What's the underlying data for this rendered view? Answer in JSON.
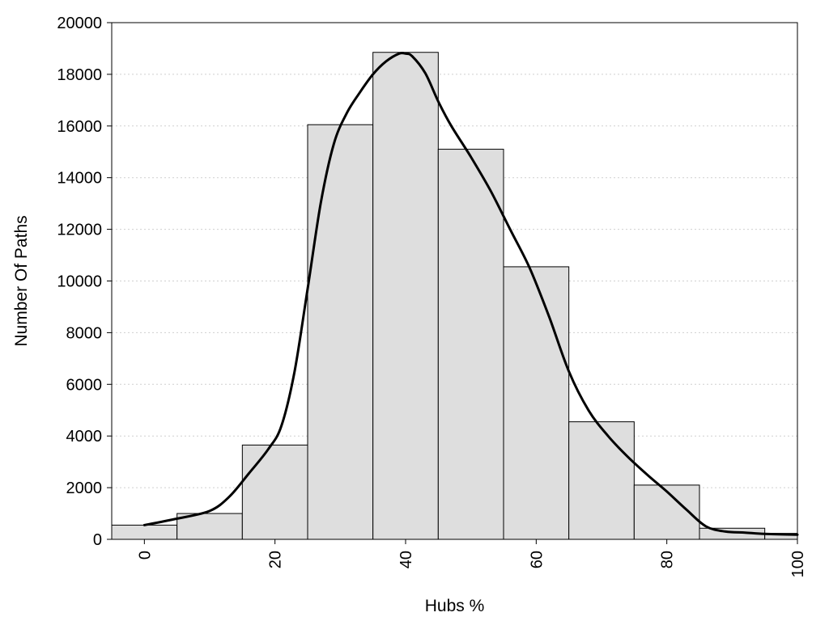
{
  "chart_data": {
    "type": "bar",
    "title": "",
    "xlabel": "Hubs %",
    "ylabel": "Number Of Paths",
    "xlim": [
      -5,
      100
    ],
    "ylim": [
      0,
      20000
    ],
    "x_ticks": [
      "0",
      "20",
      "40",
      "60",
      "80",
      "100"
    ],
    "y_ticks": [
      "0",
      "2000",
      "4000",
      "6000",
      "8000",
      "10000",
      "12000",
      "14000",
      "16000",
      "18000",
      "20000"
    ],
    "bin_width": 10,
    "bins": [
      0,
      10,
      20,
      30,
      40,
      50,
      60,
      70,
      80,
      90,
      100
    ],
    "values": [
      550,
      1000,
      3650,
      16050,
      18850,
      15100,
      10550,
      4550,
      2100,
      430,
      230
    ],
    "density_curve": {
      "x": [
        0,
        5,
        10,
        13,
        16,
        19,
        21,
        23,
        25,
        27,
        29,
        31,
        33,
        35,
        37,
        39,
        40,
        41,
        43,
        45,
        47,
        50,
        53,
        56,
        59,
        62,
        65,
        68,
        71,
        74,
        77,
        80,
        83,
        86,
        89,
        92,
        95,
        100
      ],
      "y": [
        550,
        800,
        1100,
        1650,
        2550,
        3500,
        4400,
        6500,
        9700,
        13000,
        15300,
        16500,
        17300,
        18000,
        18500,
        18800,
        18800,
        18700,
        18050,
        16950,
        16000,
        14800,
        13500,
        12000,
        10500,
        8600,
        6500,
        5000,
        4000,
        3200,
        2500,
        1850,
        1150,
        500,
        300,
        260,
        210,
        180
      ]
    },
    "grid": true,
    "legend": "none",
    "colors": {
      "bar_fill": "#dedede",
      "bar_edge": "#000000",
      "curve": "#000000",
      "grid": "#cfcfcf"
    }
  }
}
